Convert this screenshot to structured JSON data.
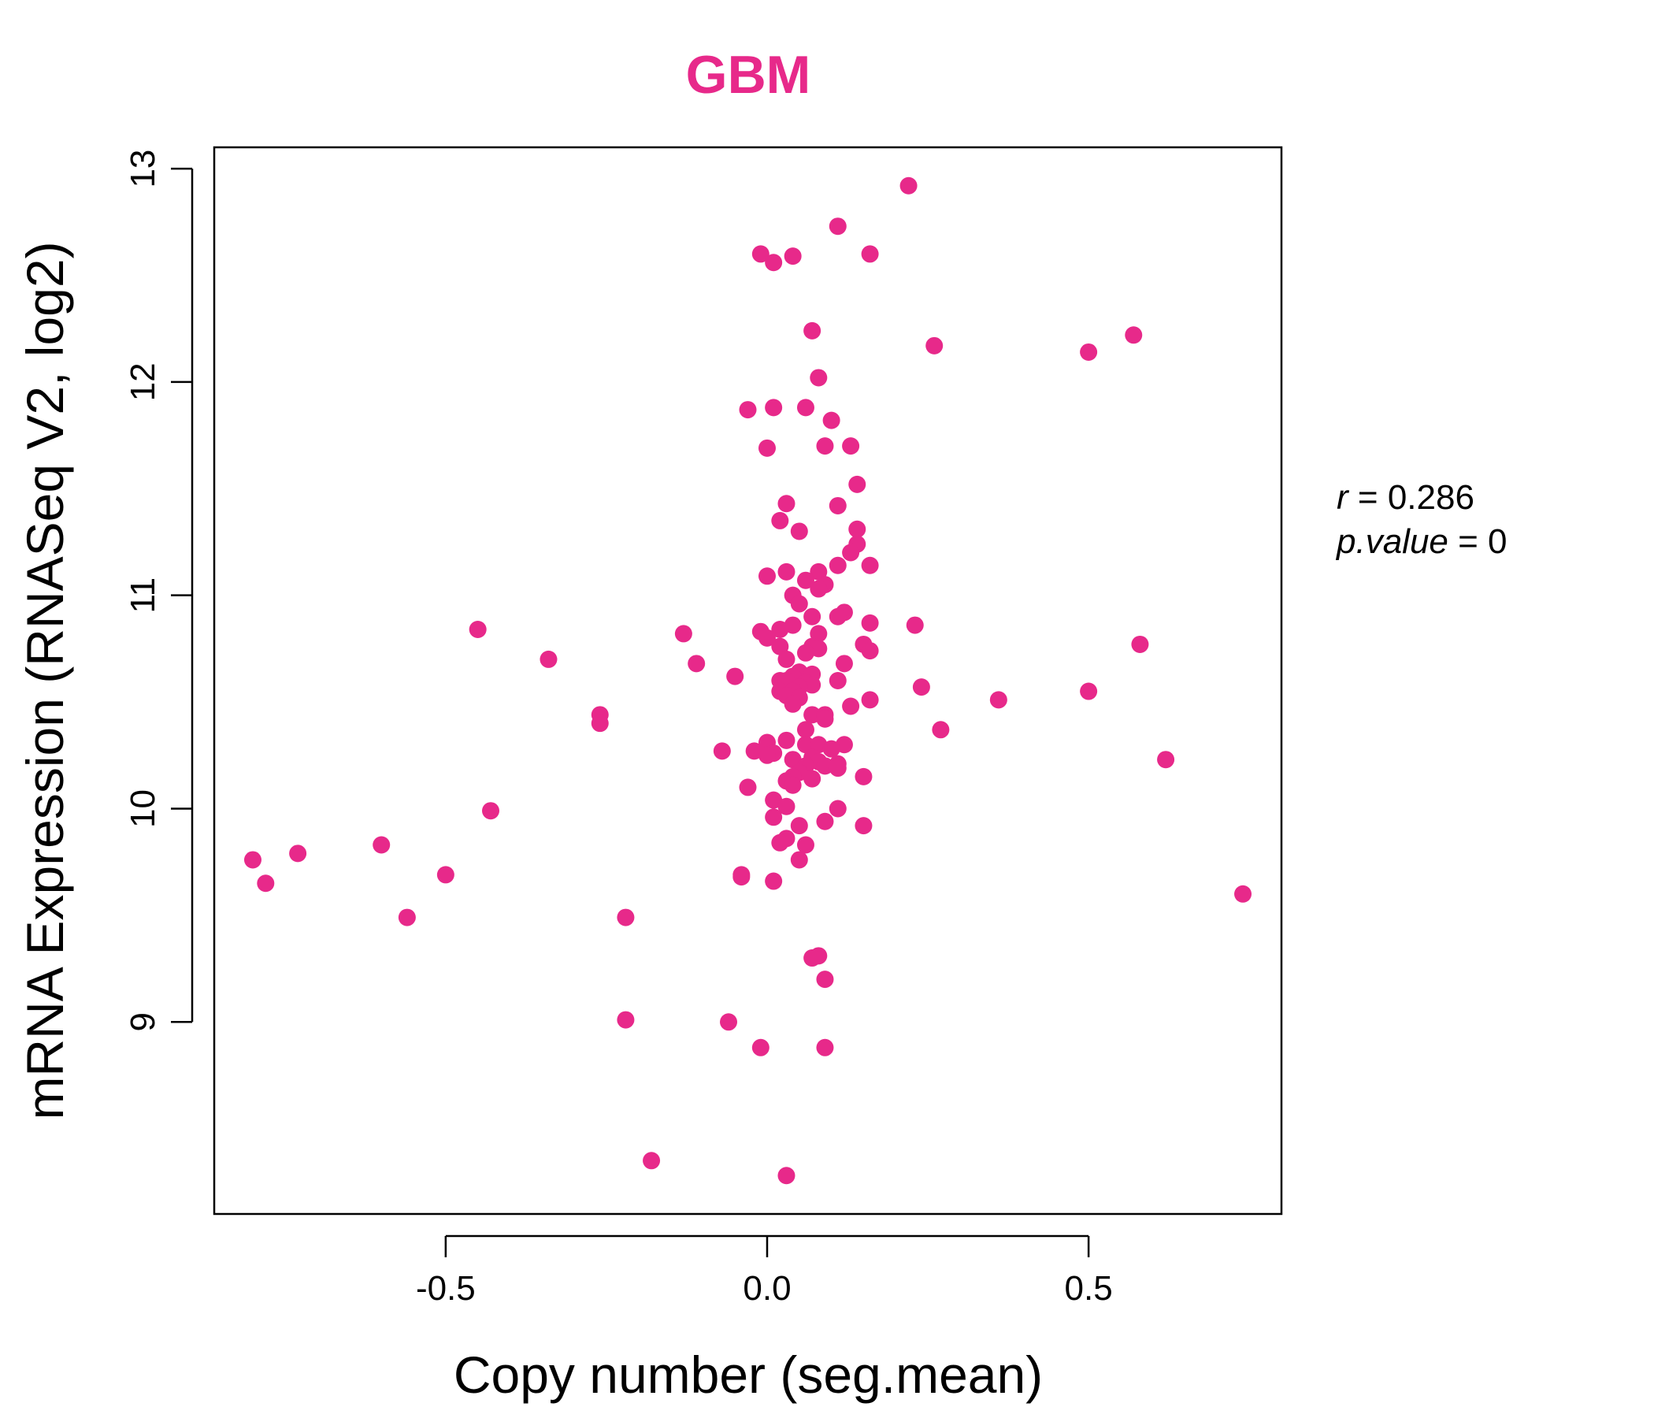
{
  "chart_data": {
    "type": "scatter",
    "title": "GBM",
    "xlabel": "Copy number (seg.mean)",
    "ylabel": "mRNA Expression (RNASeq V2, log2)",
    "xlim": [
      -0.86,
      0.8
    ],
    "ylim": [
      8.1,
      13.1
    ],
    "xticks": [
      -0.5,
      0.0,
      0.5
    ],
    "xtick_labels": [
      "-0.5",
      "0.0",
      "0.5"
    ],
    "yticks": [
      9,
      10,
      11,
      12,
      13
    ],
    "yticks_labels": [
      "9",
      "10",
      "11",
      "12",
      "13"
    ],
    "grid": false,
    "color": "#E7298A",
    "stats": {
      "r_label": "r",
      "r_value": "0.286",
      "p_label": "p.value",
      "p_value": "0"
    },
    "points": [
      [
        0.22,
        12.92
      ],
      [
        0.11,
        12.73
      ],
      [
        -0.01,
        12.6
      ],
      [
        0.04,
        12.59
      ],
      [
        0.16,
        12.6
      ],
      [
        0.01,
        12.56
      ],
      [
        0.07,
        12.24
      ],
      [
        0.26,
        12.17
      ],
      [
        0.57,
        12.22
      ],
      [
        0.5,
        12.14
      ],
      [
        0.08,
        12.02
      ],
      [
        -0.03,
        11.87
      ],
      [
        0.01,
        11.88
      ],
      [
        0.06,
        11.88
      ],
      [
        0.1,
        11.82
      ],
      [
        0.0,
        11.69
      ],
      [
        0.09,
        11.7
      ],
      [
        0.13,
        11.7
      ],
      [
        0.14,
        11.52
      ],
      [
        0.03,
        11.43
      ],
      [
        0.11,
        11.42
      ],
      [
        0.02,
        11.35
      ],
      [
        0.14,
        11.31
      ],
      [
        0.05,
        11.3
      ],
      [
        0.14,
        11.24
      ],
      [
        0.13,
        11.2
      ],
      [
        0.16,
        11.14
      ],
      [
        0.11,
        11.14
      ],
      [
        0.03,
        11.11
      ],
      [
        0.08,
        11.11
      ],
      [
        0.0,
        11.09
      ],
      [
        0.06,
        11.07
      ],
      [
        0.09,
        11.05
      ],
      [
        0.08,
        11.03
      ],
      [
        0.04,
        11.0
      ],
      [
        0.05,
        10.96
      ],
      [
        0.12,
        10.92
      ],
      [
        0.07,
        10.9
      ],
      [
        0.11,
        10.9
      ],
      [
        0.16,
        10.87
      ],
      [
        0.23,
        10.86
      ],
      [
        0.04,
        10.86
      ],
      [
        0.02,
        10.84
      ],
      [
        -0.01,
        10.83
      ],
      [
        0.08,
        10.82
      ],
      [
        -0.13,
        10.82
      ],
      [
        0.0,
        10.8
      ],
      [
        0.02,
        10.76
      ],
      [
        0.07,
        10.76
      ],
      [
        0.08,
        10.75
      ],
      [
        0.15,
        10.77
      ],
      [
        0.16,
        10.74
      ],
      [
        0.06,
        10.73
      ],
      [
        0.58,
        10.77
      ],
      [
        -0.45,
        10.84
      ],
      [
        -0.34,
        10.7
      ],
      [
        0.03,
        10.7
      ],
      [
        -0.11,
        10.68
      ],
      [
        0.12,
        10.68
      ],
      [
        0.05,
        10.64
      ],
      [
        0.07,
        10.63
      ],
      [
        -0.05,
        10.62
      ],
      [
        0.04,
        10.62
      ],
      [
        0.02,
        10.6
      ],
      [
        0.11,
        10.6
      ],
      [
        0.03,
        10.6
      ],
      [
        0.06,
        10.59
      ],
      [
        0.07,
        10.58
      ],
      [
        0.24,
        10.57
      ],
      [
        0.05,
        10.57
      ],
      [
        0.02,
        10.55
      ],
      [
        0.04,
        10.55
      ],
      [
        0.5,
        10.55
      ],
      [
        0.03,
        10.53
      ],
      [
        0.05,
        10.52
      ],
      [
        0.16,
        10.51
      ],
      [
        0.36,
        10.51
      ],
      [
        0.04,
        10.49
      ],
      [
        0.13,
        10.48
      ],
      [
        -0.26,
        10.44
      ],
      [
        0.07,
        10.44
      ],
      [
        0.09,
        10.44
      ],
      [
        0.09,
        10.42
      ],
      [
        -0.26,
        10.4
      ],
      [
        0.06,
        10.37
      ],
      [
        0.27,
        10.37
      ],
      [
        0.0,
        10.31
      ],
      [
        0.03,
        10.32
      ],
      [
        0.06,
        10.3
      ],
      [
        0.08,
        10.3
      ],
      [
        0.12,
        10.3
      ],
      [
        0.1,
        10.28
      ],
      [
        -0.07,
        10.27
      ],
      [
        -0.02,
        10.27
      ],
      [
        0.01,
        10.26
      ],
      [
        0.0,
        10.25
      ],
      [
        0.07,
        10.24
      ],
      [
        0.04,
        10.23
      ],
      [
        0.62,
        10.23
      ],
      [
        0.08,
        10.22
      ],
      [
        0.11,
        10.21
      ],
      [
        0.06,
        10.2
      ],
      [
        0.09,
        10.2
      ],
      [
        0.11,
        10.19
      ],
      [
        0.05,
        10.17
      ],
      [
        0.04,
        10.15
      ],
      [
        0.07,
        10.14
      ],
      [
        0.15,
        10.15
      ],
      [
        0.03,
        10.13
      ],
      [
        0.04,
        10.11
      ],
      [
        -0.03,
        10.1
      ],
      [
        0.01,
        10.04
      ],
      [
        0.03,
        10.01
      ],
      [
        0.11,
        10.0
      ],
      [
        -0.43,
        9.99
      ],
      [
        0.01,
        9.96
      ],
      [
        0.05,
        9.92
      ],
      [
        0.09,
        9.94
      ],
      [
        0.15,
        9.92
      ],
      [
        0.03,
        9.86
      ],
      [
        0.02,
        9.84
      ],
      [
        0.06,
        9.83
      ],
      [
        -0.6,
        9.83
      ],
      [
        -0.73,
        9.79
      ],
      [
        -0.8,
        9.76
      ],
      [
        0.05,
        9.76
      ],
      [
        -0.5,
        9.69
      ],
      [
        -0.04,
        9.69
      ],
      [
        -0.04,
        9.68
      ],
      [
        0.01,
        9.66
      ],
      [
        -0.78,
        9.65
      ],
      [
        0.74,
        9.6
      ],
      [
        -0.56,
        9.49
      ],
      [
        -0.22,
        9.49
      ],
      [
        0.08,
        9.31
      ],
      [
        0.07,
        9.3
      ],
      [
        0.09,
        9.2
      ],
      [
        -0.22,
        9.01
      ],
      [
        -0.06,
        9.0
      ],
      [
        -0.01,
        8.88
      ],
      [
        0.09,
        8.88
      ],
      [
        -0.18,
        8.35
      ],
      [
        0.03,
        8.28
      ]
    ]
  }
}
